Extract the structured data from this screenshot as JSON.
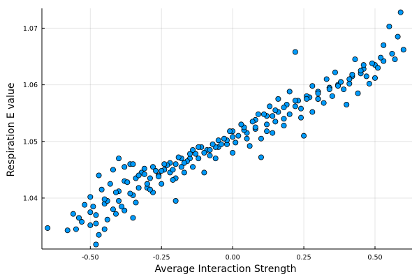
{
  "chart_data": {
    "type": "scatter",
    "title": "",
    "xlabel": "Average Interaction Strength",
    "ylabel": "Respiration E value",
    "xlim": [
      -0.67,
      0.63
    ],
    "ylim": [
      1.031,
      1.0735
    ],
    "x_ticks": [
      -0.5,
      -0.25,
      0.0,
      0.25,
      0.5
    ],
    "x_tick_labels": [
      "-0.50",
      "-0.25",
      "0.00",
      "0.25",
      "0.50"
    ],
    "y_ticks": [
      1.04,
      1.05,
      1.06,
      1.07
    ],
    "y_tick_labels": [
      "1.04",
      "1.05",
      "1.06",
      "1.07"
    ],
    "grid": true,
    "legend": "none",
    "point_color": "#009AFA",
    "series": [
      {
        "x": [
          -0.65,
          -0.58,
          -0.55,
          -0.53,
          -0.5,
          -0.48,
          -0.47,
          -0.45,
          -0.52,
          -0.5,
          -0.48,
          -0.45,
          -0.42,
          -0.4,
          -0.38,
          -0.35,
          -0.5,
          -0.46,
          -0.44,
          -0.4,
          -0.36,
          -0.33,
          -0.3,
          -0.28,
          -0.43,
          -0.38,
          -0.34,
          -0.3,
          -0.26,
          -0.22,
          -0.2,
          -0.47,
          -0.42,
          -0.36,
          -0.32,
          -0.28,
          -0.24,
          -0.4,
          -0.35,
          -0.31,
          -0.27,
          -0.22,
          -0.18,
          -0.15,
          -0.38,
          -0.33,
          -0.29,
          -0.25,
          -0.2,
          -0.16,
          -0.12,
          -0.08,
          -0.3,
          -0.26,
          -0.21,
          -0.17,
          -0.13,
          -0.09,
          -0.05,
          -0.02,
          -0.23,
          -0.18,
          -0.14,
          -0.1,
          -0.06,
          -0.02,
          0.02,
          0.05,
          -0.15,
          -0.11,
          -0.07,
          -0.03,
          0.01,
          0.05,
          0.08,
          0.12,
          -0.08,
          -0.04,
          0.0,
          0.04,
          0.08,
          0.12,
          0.15,
          0.18,
          0.0,
          0.04,
          0.08,
          0.12,
          0.16,
          0.2,
          0.24,
          0.07,
          0.11,
          0.15,
          0.19,
          0.23,
          0.27,
          0.3,
          0.14,
          0.18,
          0.22,
          0.26,
          0.3,
          0.34,
          0.37,
          0.22,
          0.26,
          0.3,
          0.34,
          0.38,
          0.42,
          0.45,
          0.3,
          0.34,
          0.38,
          0.42,
          0.46,
          0.5,
          0.53,
          0.37,
          0.41,
          0.45,
          0.49,
          0.52,
          0.56,
          0.6,
          0.59,
          0.55,
          0.58,
          0.53,
          0.22,
          -0.35,
          -0.2,
          -0.1,
          0.1,
          0.25,
          0.4,
          0.44,
          0.48,
          0.5,
          0.46,
          0.43,
          0.36,
          0.33,
          0.28,
          0.2,
          0.16,
          0.13,
          0.09,
          0.03,
          -0.01,
          -0.05,
          -0.12,
          -0.19,
          -0.24,
          -0.31,
          -0.37,
          -0.41,
          -0.45,
          -0.49,
          -0.54,
          -0.56,
          -0.48,
          -0.44,
          -0.41,
          -0.39,
          -0.34,
          -0.29,
          -0.25,
          -0.21,
          -0.17,
          -0.14,
          -0.06,
          0.0,
          0.06,
          0.1,
          0.14,
          0.18,
          0.24,
          0.28,
          0.32,
          0.35,
          0.39,
          0.41,
          0.47,
          0.51,
          0.57
        ],
        "y": [
          1.0347,
          1.0343,
          1.0345,
          1.0358,
          1.0352,
          1.0318,
          1.0335,
          1.0345,
          1.0388,
          1.0375,
          1.037,
          1.039,
          1.038,
          1.0395,
          1.0378,
          1.0405,
          1.0402,
          1.0415,
          1.0395,
          1.0412,
          1.0408,
          1.0418,
          1.0425,
          1.041,
          1.0425,
          1.043,
          1.0435,
          1.0418,
          1.044,
          1.0445,
          1.0435,
          1.044,
          1.045,
          1.046,
          1.0445,
          1.0455,
          1.045,
          1.047,
          1.046,
          1.0452,
          1.0448,
          1.0462,
          1.0455,
          1.047,
          1.0455,
          1.044,
          1.0435,
          1.0448,
          1.046,
          1.0465,
          1.047,
          1.0475,
          1.0425,
          1.0438,
          1.045,
          1.0462,
          1.0478,
          1.0485,
          1.049,
          1.0495,
          1.0458,
          1.047,
          1.0485,
          1.048,
          1.049,
          1.0502,
          1.051,
          1.0505,
          1.0478,
          1.049,
          1.0495,
          1.0505,
          1.0498,
          1.0515,
          1.0522,
          1.0518,
          1.0485,
          1.0495,
          1.0508,
          1.052,
          1.0525,
          1.053,
          1.0535,
          1.054,
          1.0518,
          1.0525,
          1.0538,
          1.0545,
          1.0552,
          1.0548,
          1.0558,
          1.0535,
          1.0548,
          1.0555,
          1.0565,
          1.0572,
          1.0578,
          1.0575,
          1.0545,
          1.056,
          1.0572,
          1.058,
          1.0588,
          1.0595,
          1.06,
          1.0562,
          1.0575,
          1.0585,
          1.0595,
          1.0605,
          1.0615,
          1.062,
          1.0575,
          1.0592,
          1.0605,
          1.0618,
          1.0628,
          1.0635,
          1.0642,
          1.0598,
          1.061,
          1.0625,
          1.0638,
          1.0648,
          1.0655,
          1.0662,
          1.0728,
          1.0703,
          1.0685,
          1.067,
          1.0658,
          1.0365,
          1.0395,
          1.0445,
          1.0472,
          1.051,
          1.0565,
          1.0585,
          1.0602,
          1.0612,
          1.0635,
          1.0645,
          1.0622,
          1.061,
          1.0598,
          1.0588,
          1.0575,
          1.0562,
          1.0548,
          1.053,
          1.0518,
          1.0502,
          1.049,
          1.0472,
          1.046,
          1.0442,
          1.0428,
          1.041,
          1.0398,
          1.0385,
          1.0365,
          1.0372,
          1.0355,
          1.0362,
          1.0372,
          1.0385,
          1.0392,
          1.0415,
          1.0425,
          1.0432,
          1.0445,
          1.0455,
          1.047,
          1.048,
          1.0492,
          1.0505,
          1.0515,
          1.0528,
          1.0542,
          1.0552,
          1.0568,
          1.058,
          1.0592,
          1.0602,
          1.0615,
          1.063,
          1.0645
        ]
      }
    ]
  }
}
